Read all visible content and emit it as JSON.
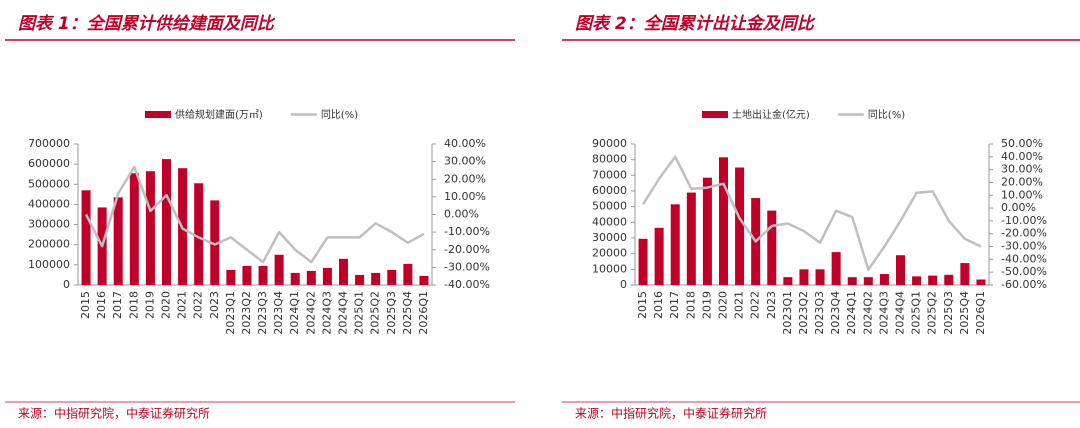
{
  "chart_data": [
    {
      "type": "combo",
      "title": "图表 1：全国累计供给建面及同比",
      "source": "来源：中指研究院，中泰证券研究所",
      "categories": [
        "2015",
        "2016",
        "2017",
        "2018",
        "2019",
        "2020",
        "2021",
        "2022",
        "2023",
        "2023Q1",
        "2023Q2",
        "2023Q3",
        "2023Q4",
        "2024Q1",
        "2024Q2",
        "2024Q3",
        "2024Q4",
        "2025Q1",
        "2025Q2",
        "2025Q3",
        "2025Q4",
        "2026Q1"
      ],
      "series": [
        {
          "name": "供给规划建面(万㎡)",
          "type": "bar",
          "color": "#c00028",
          "axis": "y",
          "values": [
            470000,
            385000,
            435000,
            555000,
            565000,
            625000,
            580000,
            505000,
            420000,
            75000,
            95000,
            95000,
            150000,
            60000,
            70000,
            85000,
            130000,
            50000,
            60000,
            75000,
            105000,
            45000
          ]
        },
        {
          "name": "同比(%)",
          "type": "line",
          "color": "#bfbfbf",
          "axis": "y2",
          "values": [
            0,
            -18,
            12,
            27,
            2,
            11,
            -8,
            -13,
            -17,
            -13,
            -20,
            -27,
            -10,
            -20,
            -27,
            -13,
            -13,
            -13,
            -5,
            -10,
            -16,
            -11
          ]
        }
      ],
      "ylim": [
        0,
        700000
      ],
      "yticks": [
        0,
        100000,
        200000,
        300000,
        400000,
        500000,
        600000,
        700000
      ],
      "y2lim": [
        -40,
        40
      ],
      "y2ticks": [
        {
          "value": -40,
          "label": "-40.00%"
        },
        {
          "value": -30,
          "label": "-30.00%"
        },
        {
          "value": -20,
          "label": "-20.00%"
        },
        {
          "value": -10,
          "label": "-10.00%"
        },
        {
          "value": 0,
          "label": "0.00%"
        },
        {
          "value": 10,
          "label": "10.00%"
        },
        {
          "value": 20,
          "label": "20.00%"
        },
        {
          "value": 30,
          "label": "30.00%"
        },
        {
          "value": 40,
          "label": "40.00%"
        }
      ]
    },
    {
      "type": "combo",
      "title": "图表 2：全国累计出让金及同比",
      "source": "来源：中指研究院，中泰证券研究所",
      "categories": [
        "2015",
        "2016",
        "2017",
        "2018",
        "2019",
        "2020",
        "2021",
        "2022",
        "2023",
        "2023Q1",
        "2023Q2",
        "2023Q3",
        "2023Q4",
        "2024Q1",
        "2024Q2",
        "2024Q3",
        "2024Q4",
        "2025Q1",
        "2025Q2",
        "2025Q3",
        "2025Q4",
        "2026Q1"
      ],
      "series": [
        {
          "name": "土地出让金(亿元)",
          "type": "bar",
          "color": "#c00028",
          "axis": "y",
          "values": [
            29500,
            36500,
            51500,
            59000,
            68500,
            81500,
            75000,
            55500,
            47500,
            5000,
            10000,
            10000,
            21000,
            5000,
            5000,
            7000,
            19000,
            5500,
            6000,
            6500,
            14000,
            3500
          ]
        },
        {
          "name": "同比(%)",
          "type": "line",
          "color": "#bfbfbf",
          "axis": "y2",
          "values": [
            3,
            23,
            40,
            15,
            16,
            19,
            -8,
            -26,
            -14,
            -12,
            -18,
            -27,
            -2,
            -7,
            -48,
            -30,
            -10,
            12,
            13,
            -10,
            -24,
            -30
          ]
        }
      ],
      "ylim": [
        0,
        90000
      ],
      "yticks": [
        0,
        10000,
        20000,
        30000,
        40000,
        50000,
        60000,
        70000,
        80000,
        90000
      ],
      "y2lim": [
        -60,
        50
      ],
      "y2ticks": [
        {
          "value": -60,
          "label": "-60.00%"
        },
        {
          "value": -50,
          "label": "-50.00%"
        },
        {
          "value": -40,
          "label": "-40.00%"
        },
        {
          "value": -30,
          "label": "-30.00%"
        },
        {
          "value": -20,
          "label": "-20.00%"
        },
        {
          "value": -10,
          "label": "-10.00%"
        },
        {
          "value": 0,
          "label": "0.00%"
        },
        {
          "value": 10,
          "label": "10.00%"
        },
        {
          "value": 20,
          "label": "20.00%"
        },
        {
          "value": 30,
          "label": "30.00%"
        },
        {
          "value": 40,
          "label": "40.00%"
        },
        {
          "value": 50,
          "label": "50.00%"
        }
      ]
    }
  ]
}
